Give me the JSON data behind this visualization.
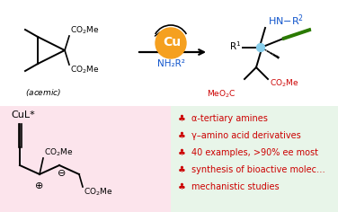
{
  "top_bg": "#ffffff",
  "bottom_left_bg": "#fce4ec",
  "bottom_right_bg": "#e8f5e9",
  "cu_circle_color": "#f5a020",
  "cu_text_color": "#ffffff",
  "nh2r2_color": "#1155cc",
  "hn_r2_color": "#1155cc",
  "meoc_color": "#cc0000",
  "alkyne_color": "#2a7a00",
  "bullet_color": "#cc0000",
  "bullet_symbol": "♣",
  "bullet_items": [
    "α-tertiary amines",
    "γ–amino acid derivatives",
    "40 examples, >90% ee most",
    "synthesis of bioactive molec…",
    "mechanistic studies"
  ],
  "cu_label": "Cu",
  "reagent_label": "NH₂R²",
  "cul_label": "CuL*"
}
